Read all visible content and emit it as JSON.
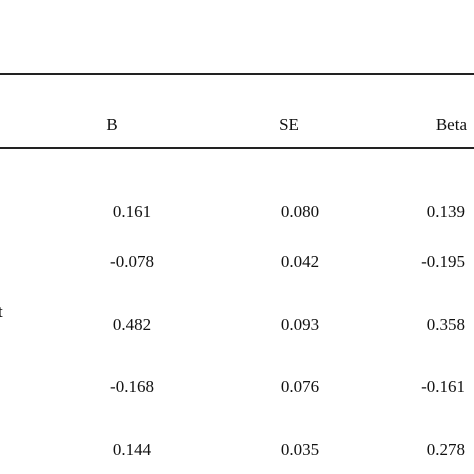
{
  "table": {
    "header": [
      "B",
      "SE",
      "Beta"
    ],
    "rows": [
      {
        "cells": [
          "0.161",
          "0.080",
          "0.139"
        ]
      },
      {
        "cells": [
          "-0.078",
          "0.042",
          "-0.195"
        ]
      },
      {
        "label": "t",
        "cells": [
          "0.482",
          "0.093",
          "0.358"
        ]
      },
      {
        "cells": [
          "-0.168",
          "0.076",
          "-0.161"
        ]
      },
      {
        "cells": [
          "0.144",
          "0.035",
          "0.278"
        ]
      }
    ]
  }
}
